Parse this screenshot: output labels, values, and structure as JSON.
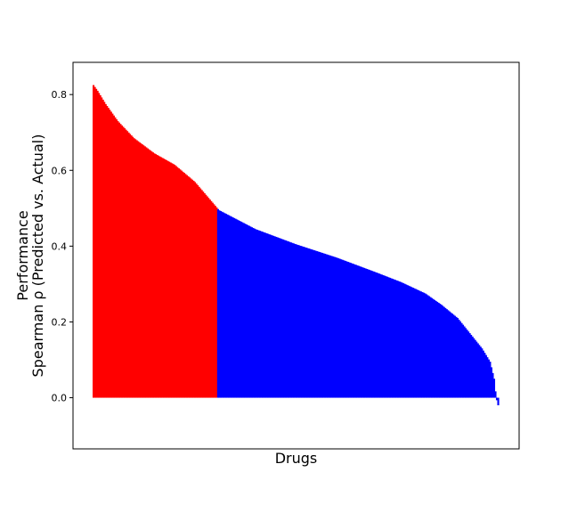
{
  "chart_data": {
    "type": "bar",
    "title": "",
    "xlabel": "Drugs",
    "ylabel_lines": [
      "Performance",
      "Spearman ρ (Predicted vs. Actual)"
    ],
    "ylim": [
      -0.135,
      0.885
    ],
    "yticks": [
      0.0,
      0.2,
      0.4,
      0.6,
      0.8
    ],
    "ytick_labels": [
      "0.0",
      "0.2",
      "0.4",
      "0.6",
      "0.8"
    ],
    "grid": false,
    "legend": "none",
    "n_drugs": 300,
    "threshold": 0.5,
    "colors": {
      "above_threshold": "#ff0000",
      "below_threshold": "#0000ff"
    },
    "profile": {
      "description_rank_fraction_to_value": "sorted descending performance curve",
      "fraction": [
        0.0,
        0.01,
        0.03,
        0.06,
        0.1,
        0.15,
        0.2,
        0.25,
        0.31,
        0.4,
        0.5,
        0.6,
        0.7,
        0.76,
        0.82,
        0.86,
        0.9,
        0.93,
        0.96,
        0.98,
        0.99,
        0.995,
        1.0
      ],
      "value": [
        0.825,
        0.81,
        0.775,
        0.73,
        0.685,
        0.645,
        0.615,
        0.57,
        0.495,
        0.445,
        0.405,
        0.37,
        0.33,
        0.305,
        0.275,
        0.245,
        0.21,
        0.17,
        0.13,
        0.095,
        0.05,
        0.0,
        -0.02
      ]
    }
  }
}
